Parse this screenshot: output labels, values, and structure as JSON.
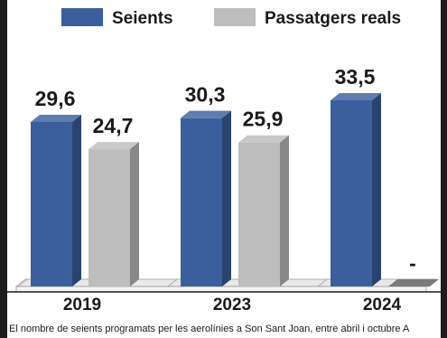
{
  "chart_data": {
    "type": "bar",
    "categories": [
      "2019",
      "2023",
      "2024"
    ],
    "series": [
      {
        "name": "Seients",
        "values": [
          29.6,
          30.3,
          33.5
        ],
        "labels": [
          "29,6",
          "30,3",
          "33,5"
        ],
        "color": "#3b5f9c"
      },
      {
        "name": "Passatgers reals",
        "values": [
          24.7,
          25.9,
          null
        ],
        "labels": [
          "24,7",
          "25,9",
          "-"
        ],
        "color": "#bdbdbd"
      }
    ],
    "legend_position": "top",
    "grid": false
  },
  "caption": "El nombre de seients programats per les aerolínies a Son Sant Joan, entre abril i octubre A"
}
